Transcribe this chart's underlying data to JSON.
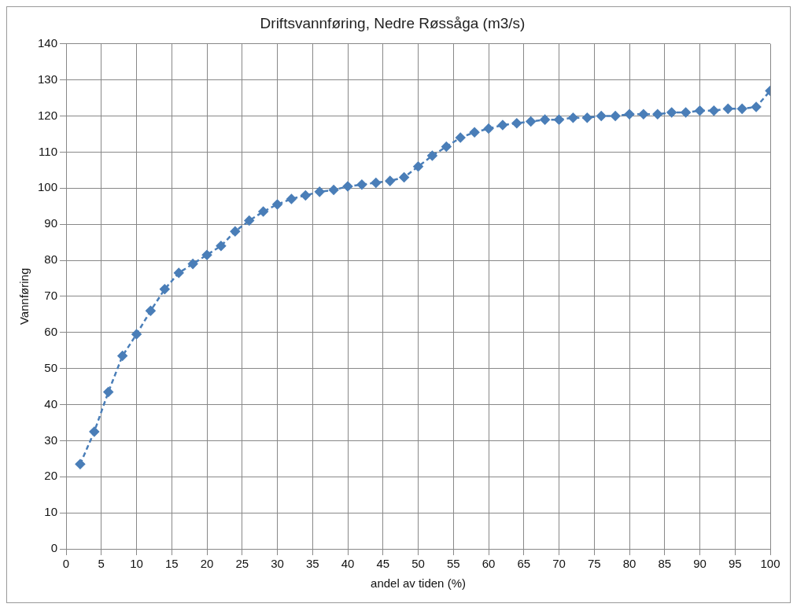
{
  "chart_data": {
    "type": "line",
    "title": "Driftsvannføring, Nedre Røssåga (m3/s)",
    "xlabel": "andel av tiden (%)",
    "ylabel": "Vannføring",
    "x": [
      2,
      4,
      6,
      8,
      10,
      12,
      14,
      16,
      18,
      20,
      22,
      24,
      26,
      28,
      30,
      32,
      34,
      36,
      38,
      40,
      42,
      44,
      46,
      48,
      50,
      52,
      54,
      56,
      58,
      60,
      62,
      64,
      66,
      68,
      70,
      72,
      74,
      76,
      78,
      80,
      82,
      84,
      86,
      88,
      90,
      92,
      94,
      96,
      98,
      100
    ],
    "series": [
      {
        "color": "#4a7eb8",
        "values": [
          23.5,
          32.5,
          43.5,
          53.5,
          59.5,
          66,
          72,
          76.5,
          79,
          81.5,
          84,
          88,
          91,
          93.5,
          95.5,
          97,
          98,
          99,
          99.5,
          100.5,
          101,
          101.5,
          102,
          103,
          106,
          109,
          111.5,
          114,
          115.5,
          116.5,
          117.5,
          118,
          118.5,
          119,
          119,
          119.5,
          119.5,
          120,
          120,
          120.5,
          120.5,
          120.5,
          121,
          121,
          121.5,
          121.5,
          122,
          122,
          122.5,
          127
        ]
      }
    ],
    "xlim": [
      0,
      100
    ],
    "xticks": [
      0,
      5,
      10,
      15,
      20,
      25,
      30,
      35,
      40,
      45,
      50,
      55,
      60,
      65,
      70,
      75,
      80,
      85,
      90,
      95,
      100
    ],
    "ylim": [
      0,
      140
    ],
    "yticks": [
      0,
      10,
      20,
      30,
      40,
      50,
      60,
      70,
      80,
      90,
      100,
      110,
      120,
      130,
      140
    ],
    "grid": true,
    "legend": false,
    "marker": "diamond",
    "line_style": "dashed"
  }
}
